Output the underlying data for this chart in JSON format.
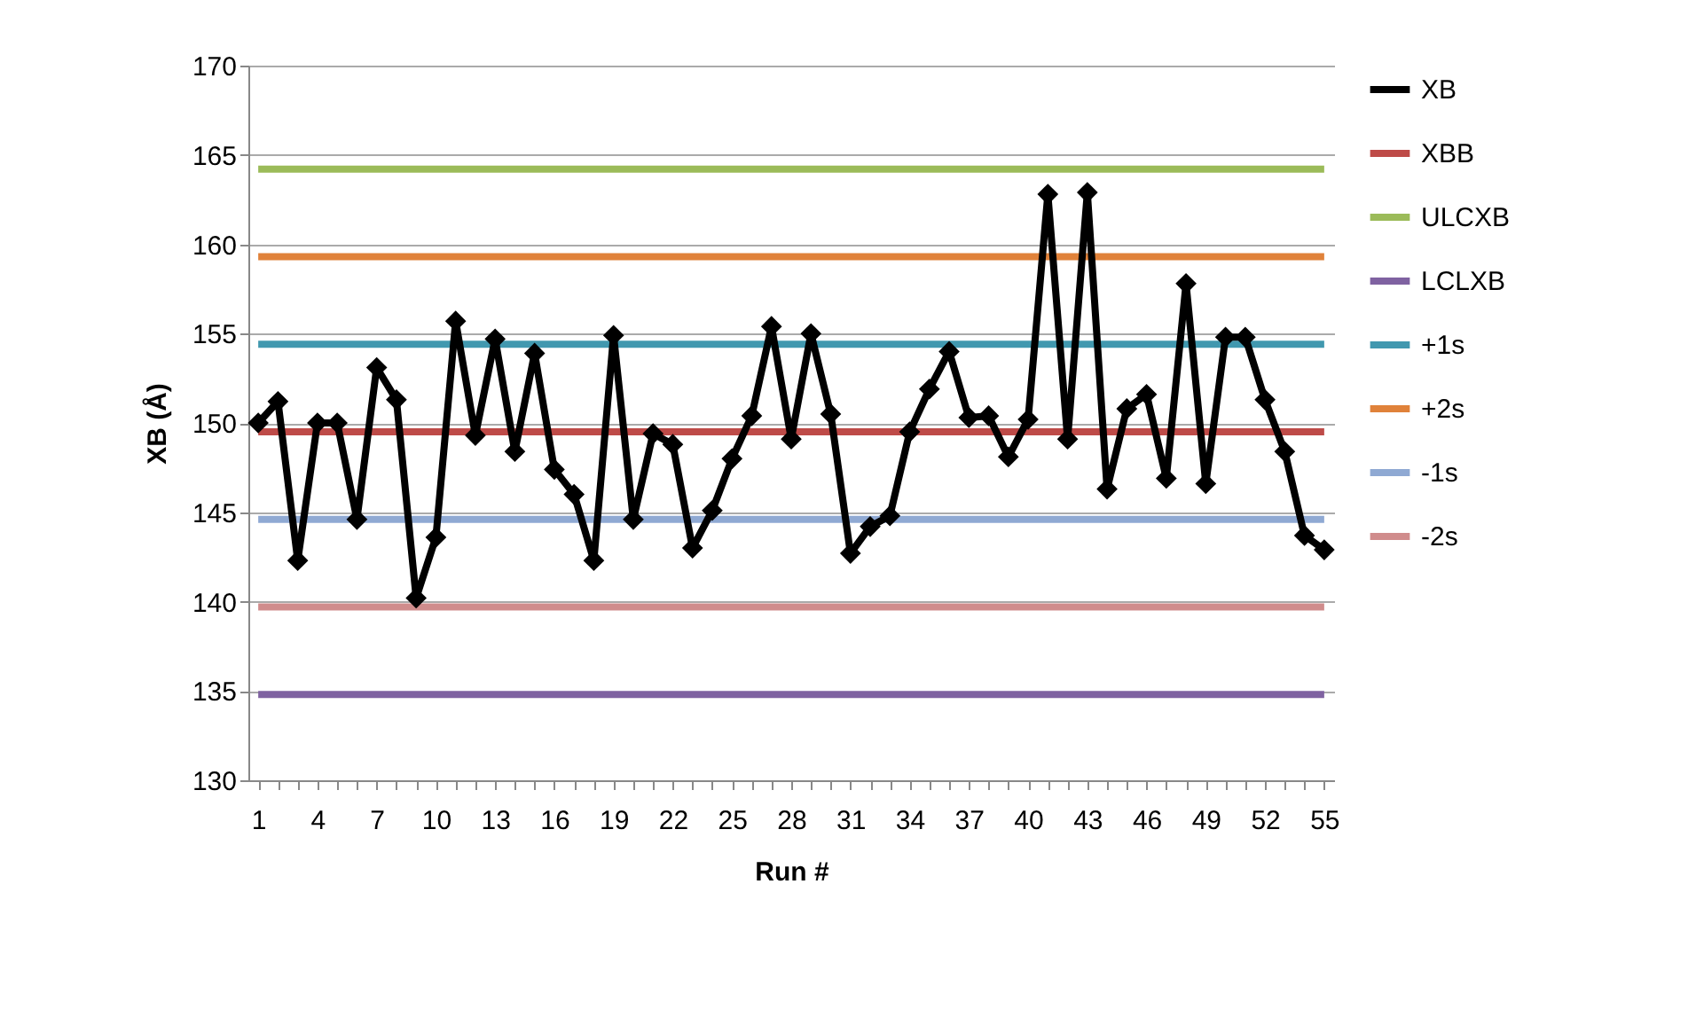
{
  "chart_data": {
    "type": "line",
    "xlabel": "Run #",
    "ylabel": "XB (Å)",
    "categories": [
      "1",
      null,
      null,
      "4",
      null,
      null,
      "7",
      null,
      null,
      "10",
      null,
      null,
      "13",
      null,
      null,
      "16",
      null,
      null,
      "19",
      null,
      null,
      "22",
      null,
      null,
      "25",
      null,
      null,
      "28",
      null,
      null,
      "31",
      null,
      null,
      "34",
      null,
      null,
      "37",
      null,
      null,
      "40",
      null,
      null,
      "43",
      null,
      null,
      "46",
      null,
      null,
      "49",
      null,
      null,
      "52",
      null,
      null,
      "55"
    ],
    "ylim": [
      130,
      170
    ],
    "yticks": [
      130,
      135,
      140,
      145,
      150,
      155,
      160,
      165,
      170
    ],
    "grid": "y",
    "legend": "right",
    "series": [
      {
        "name": "XB",
        "color": "#000000",
        "marker": "diamond",
        "values": [
          150.0,
          151.2,
          142.3,
          150.0,
          150.0,
          144.6,
          153.1,
          151.3,
          140.2,
          143.6,
          155.7,
          149.3,
          154.7,
          148.4,
          153.9,
          147.4,
          146.0,
          142.3,
          154.9,
          144.6,
          149.4,
          148.8,
          143.0,
          145.1,
          148.0,
          150.4,
          155.4,
          149.1,
          155.0,
          150.5,
          142.7,
          144.2,
          144.8,
          149.5,
          151.9,
          154.0,
          150.3,
          150.4,
          148.1,
          150.2,
          162.8,
          149.1,
          162.9,
          146.3,
          150.8,
          151.6,
          146.9,
          157.8,
          146.6,
          154.8,
          154.8,
          151.3,
          148.4,
          143.7,
          142.9
        ]
      },
      {
        "name": "XBB",
        "color": "#be4b48",
        "marker": "none",
        "values": [
          149.5,
          149.5,
          149.5,
          149.5,
          149.5,
          149.5,
          149.5,
          149.5,
          149.5,
          149.5,
          149.5,
          149.5,
          149.5,
          149.5,
          149.5,
          149.5,
          149.5,
          149.5,
          149.5,
          149.5,
          149.5,
          149.5,
          149.5,
          149.5,
          149.5,
          149.5,
          149.5,
          149.5,
          149.5,
          149.5,
          149.5,
          149.5,
          149.5,
          149.5,
          149.5,
          149.5,
          149.5,
          149.5,
          149.5,
          149.5,
          149.5,
          149.5,
          149.5,
          149.5,
          149.5,
          149.5,
          149.5,
          149.5,
          149.5,
          149.5,
          149.5,
          149.5,
          149.5,
          149.5,
          149.5
        ]
      },
      {
        "name": "ULCXB",
        "color": "#9bbb59",
        "marker": "none",
        "values": [
          164.2,
          164.2,
          164.2,
          164.2,
          164.2,
          164.2,
          164.2,
          164.2,
          164.2,
          164.2,
          164.2,
          164.2,
          164.2,
          164.2,
          164.2,
          164.2,
          164.2,
          164.2,
          164.2,
          164.2,
          164.2,
          164.2,
          164.2,
          164.2,
          164.2,
          164.2,
          164.2,
          164.2,
          164.2,
          164.2,
          164.2,
          164.2,
          164.2,
          164.2,
          164.2,
          164.2,
          164.2,
          164.2,
          164.2,
          164.2,
          164.2,
          164.2,
          164.2,
          164.2,
          164.2,
          164.2,
          164.2,
          164.2,
          164.2,
          164.2,
          164.2,
          164.2,
          164.2,
          164.2,
          164.2
        ]
      },
      {
        "name": "LCLXB",
        "color": "#7f62a1",
        "marker": "none",
        "values": [
          134.8,
          134.8,
          134.8,
          134.8,
          134.8,
          134.8,
          134.8,
          134.8,
          134.8,
          134.8,
          134.8,
          134.8,
          134.8,
          134.8,
          134.8,
          134.8,
          134.8,
          134.8,
          134.8,
          134.8,
          134.8,
          134.8,
          134.8,
          134.8,
          134.8,
          134.8,
          134.8,
          134.8,
          134.8,
          134.8,
          134.8,
          134.8,
          134.8,
          134.8,
          134.8,
          134.8,
          134.8,
          134.8,
          134.8,
          134.8,
          134.8,
          134.8,
          134.8,
          134.8,
          134.8,
          134.8,
          134.8,
          134.8,
          134.8,
          134.8,
          134.8,
          134.8,
          134.8,
          134.8,
          134.8
        ]
      },
      {
        "name": "+1s",
        "color": "#4198af",
        "marker": "none",
        "values": [
          154.4,
          154.4,
          154.4,
          154.4,
          154.4,
          154.4,
          154.4,
          154.4,
          154.4,
          154.4,
          154.4,
          154.4,
          154.4,
          154.4,
          154.4,
          154.4,
          154.4,
          154.4,
          154.4,
          154.4,
          154.4,
          154.4,
          154.4,
          154.4,
          154.4,
          154.4,
          154.4,
          154.4,
          154.4,
          154.4,
          154.4,
          154.4,
          154.4,
          154.4,
          154.4,
          154.4,
          154.4,
          154.4,
          154.4,
          154.4,
          154.4,
          154.4,
          154.4,
          154.4,
          154.4,
          154.4,
          154.4,
          154.4,
          154.4,
          154.4,
          154.4,
          154.4,
          154.4,
          154.4,
          154.4
        ]
      },
      {
        "name": "+2s",
        "color": "#e0823a",
        "marker": "none",
        "values": [
          159.3,
          159.3,
          159.3,
          159.3,
          159.3,
          159.3,
          159.3,
          159.3,
          159.3,
          159.3,
          159.3,
          159.3,
          159.3,
          159.3,
          159.3,
          159.3,
          159.3,
          159.3,
          159.3,
          159.3,
          159.3,
          159.3,
          159.3,
          159.3,
          159.3,
          159.3,
          159.3,
          159.3,
          159.3,
          159.3,
          159.3,
          159.3,
          159.3,
          159.3,
          159.3,
          159.3,
          159.3,
          159.3,
          159.3,
          159.3,
          159.3,
          159.3,
          159.3,
          159.3,
          159.3,
          159.3,
          159.3,
          159.3,
          159.3,
          159.3,
          159.3,
          159.3,
          159.3,
          159.3,
          159.3
        ]
      },
      {
        "name": "-1s",
        "color": "#8fa9d3",
        "marker": "none",
        "values": [
          144.6,
          144.6,
          144.6,
          144.6,
          144.6,
          144.6,
          144.6,
          144.6,
          144.6,
          144.6,
          144.6,
          144.6,
          144.6,
          144.6,
          144.6,
          144.6,
          144.6,
          144.6,
          144.6,
          144.6,
          144.6,
          144.6,
          144.6,
          144.6,
          144.6,
          144.6,
          144.6,
          144.6,
          144.6,
          144.6,
          144.6,
          144.6,
          144.6,
          144.6,
          144.6,
          144.6,
          144.6,
          144.6,
          144.6,
          144.6,
          144.6,
          144.6,
          144.6,
          144.6,
          144.6,
          144.6,
          144.6,
          144.6,
          144.6,
          144.6,
          144.6,
          144.6,
          144.6,
          144.6,
          144.6
        ]
      },
      {
        "name": "-2s",
        "color": "#d08c8c",
        "marker": "none",
        "values": [
          139.7,
          139.7,
          139.7,
          139.7,
          139.7,
          139.7,
          139.7,
          139.7,
          139.7,
          139.7,
          139.7,
          139.7,
          139.7,
          139.7,
          139.7,
          139.7,
          139.7,
          139.7,
          139.7,
          139.7,
          139.7,
          139.7,
          139.7,
          139.7,
          139.7,
          139.7,
          139.7,
          139.7,
          139.7,
          139.7,
          139.7,
          139.7,
          139.7,
          139.7,
          139.7,
          139.7,
          139.7,
          139.7,
          139.7,
          139.7,
          139.7,
          139.7,
          139.7,
          139.7,
          139.7,
          139.7,
          139.7,
          139.7,
          139.7,
          139.7,
          139.7,
          139.7,
          139.7,
          139.7,
          139.7
        ]
      }
    ]
  }
}
